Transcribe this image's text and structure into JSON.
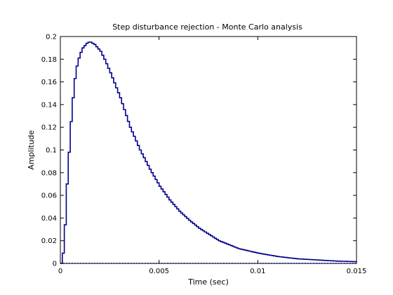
{
  "chart_data": {
    "type": "line",
    "title": "Step disturbance rejection - Monte Carlo analysis",
    "xlabel": "Time (sec)",
    "ylabel": "Amplitude",
    "xlim": [
      0,
      0.015
    ],
    "ylim": [
      0,
      0.2
    ],
    "xticks": [
      0,
      0.005,
      0.01,
      0.015
    ],
    "xtick_labels": [
      "0",
      "0.005",
      "0.01",
      "0.015"
    ],
    "yticks": [
      0,
      0.02,
      0.04,
      0.06,
      0.08,
      0.1,
      0.12,
      0.14,
      0.16,
      0.18,
      0.2
    ],
    "ytick_labels": [
      "0",
      "0.02",
      "0.04",
      "0.06",
      "0.08",
      "0.1",
      "0.12",
      "0.14",
      "0.16",
      "0.18",
      "0.2"
    ],
    "grid": false,
    "legend": "none",
    "line_style": "stairs",
    "series": [
      {
        "color": "#00008b",
        "x": [
          0,
          0.0001,
          0.0002,
          0.0003,
          0.0004,
          0.0005,
          0.0006,
          0.0007,
          0.0008,
          0.0009,
          0.001,
          0.0011,
          0.0012,
          0.0013,
          0.0014,
          0.0015,
          0.0016,
          0.0017,
          0.0018,
          0.002,
          0.0022,
          0.0025,
          0.003,
          0.0035,
          0.004,
          0.0045,
          0.005,
          0.0055,
          0.006,
          0.0065,
          0.007,
          0.008,
          0.009,
          0.01,
          0.011,
          0.012,
          0.013,
          0.014,
          0.015
        ],
        "y": [
          0,
          0.009,
          0.034,
          0.07,
          0.098,
          0.125,
          0.146,
          0.163,
          0.174,
          0.181,
          0.186,
          0.19,
          0.192,
          0.194,
          0.195,
          0.195,
          0.194,
          0.193,
          0.191,
          0.187,
          0.18,
          0.168,
          0.146,
          0.12,
          0.1,
          0.083,
          0.068,
          0.056,
          0.046,
          0.038,
          0.031,
          0.02,
          0.013,
          0.009,
          0.006,
          0.004,
          0.003,
          0.002,
          0.0015
        ]
      },
      {
        "color": "#00008b",
        "style": "dotted",
        "x": [
          0,
          0.015
        ],
        "y": [
          0,
          0
        ]
      }
    ]
  }
}
